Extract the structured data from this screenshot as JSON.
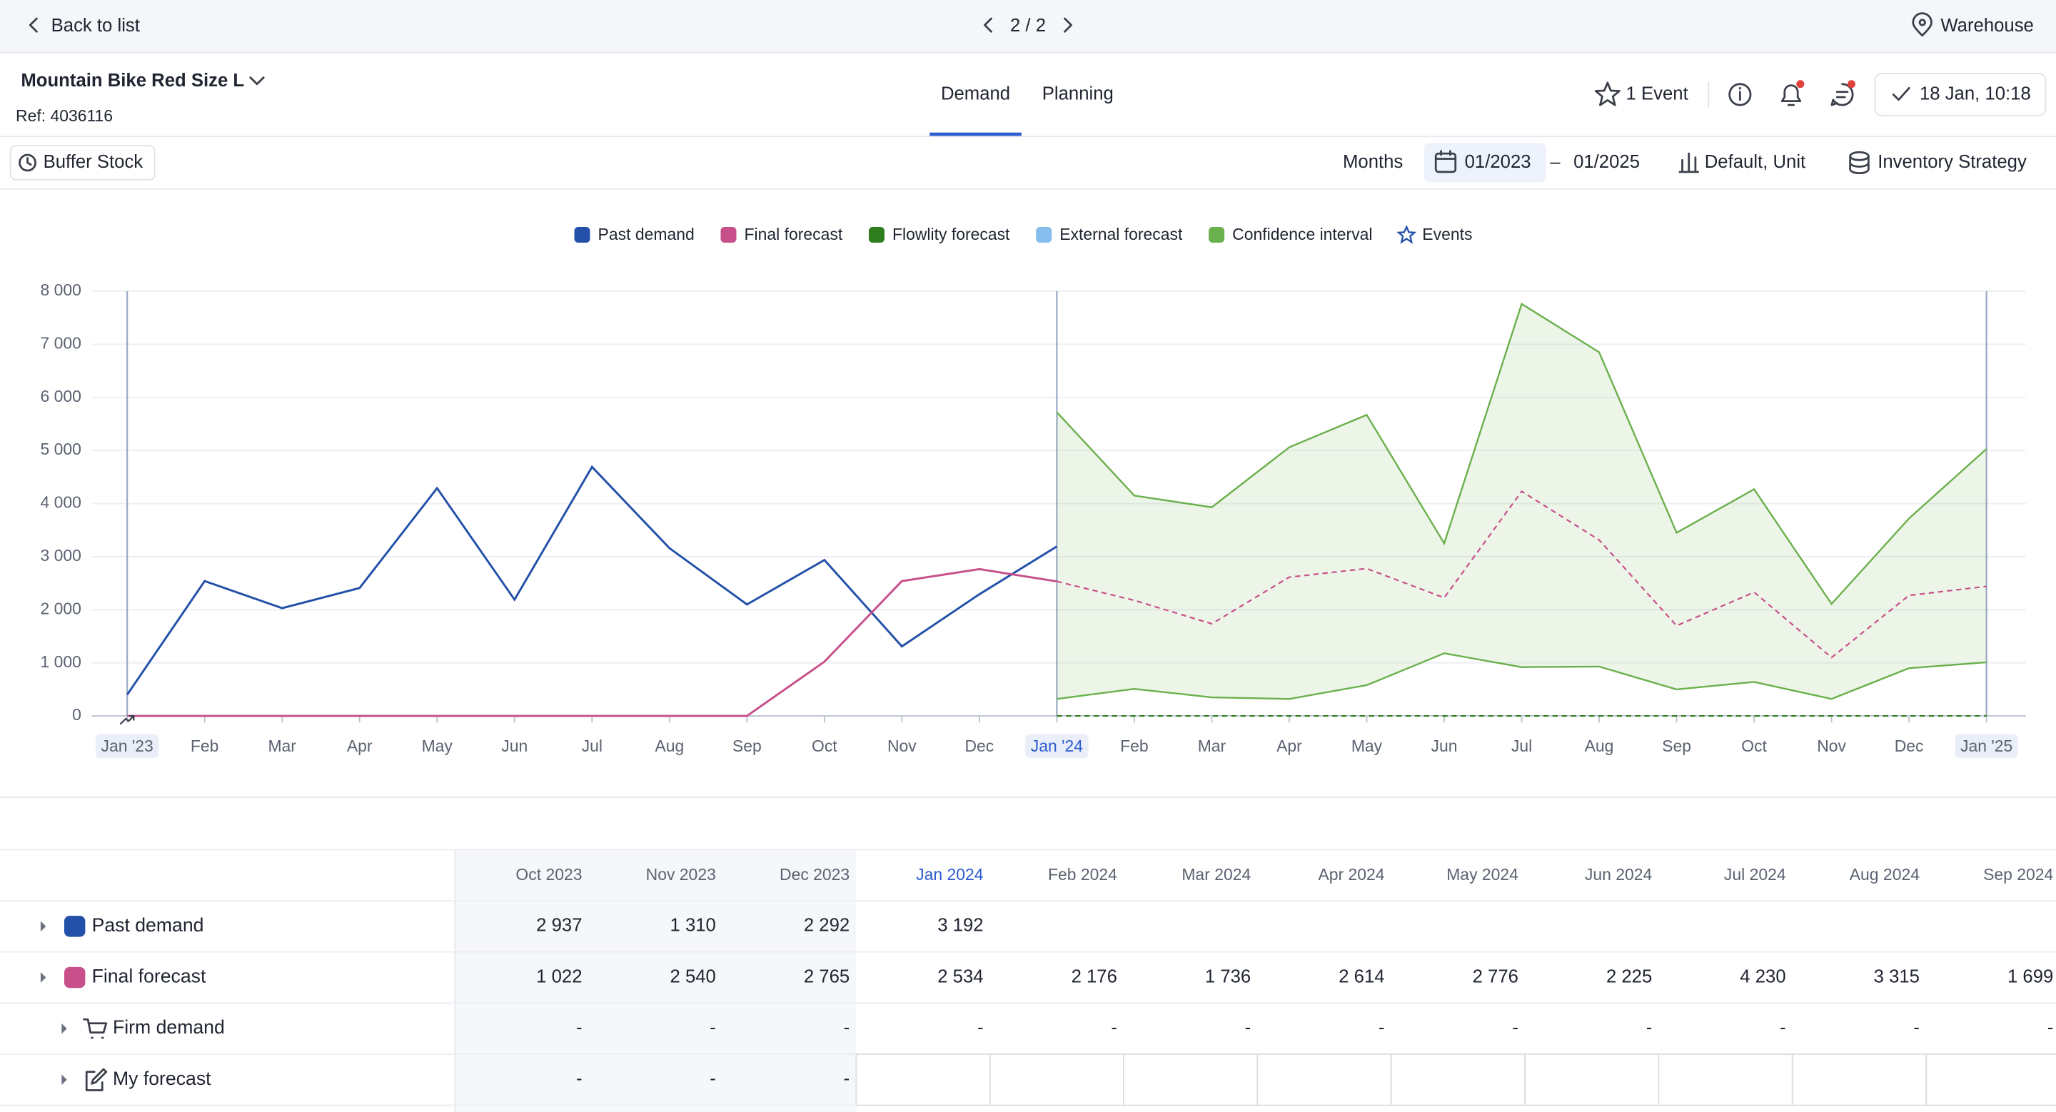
{
  "header": {
    "back": "Back to list",
    "pager": "2 / 2",
    "location": "Warehouse"
  },
  "product": {
    "title": "Mountain Bike Red Size L",
    "ref": "Ref: 4036116",
    "tabs": [
      "Demand",
      "Planning"
    ],
    "events": "1 Event",
    "status": "18 Jan, 10:18"
  },
  "toolbar": {
    "buffer": "Buffer Stock",
    "period": "Months",
    "from": "01/2023",
    "dash": "–",
    "to": "01/2025",
    "unit": "Default, Unit",
    "strategy": "Inventory Strategy"
  },
  "chart_data": {
    "type": "line",
    "categories": [
      "Jan '23",
      "Feb",
      "Mar",
      "Apr",
      "May",
      "Jun",
      "Jul",
      "Aug",
      "Sep",
      "Oct",
      "Nov",
      "Dec",
      "Jan '24",
      "Feb",
      "Mar",
      "Apr",
      "May",
      "Jun",
      "Jul",
      "Aug",
      "Sep",
      "Oct",
      "Nov",
      "Dec",
      "Jan '25"
    ],
    "series": [
      {
        "name": "Past demand",
        "color": "#2350a8",
        "values": [
          400,
          2540,
          2030,
          2410,
          4290,
          2190,
          4690,
          3160,
          2100,
          2937,
          1310,
          2292,
          3192,
          null,
          null,
          null,
          null,
          null,
          null,
          null,
          null,
          null,
          null,
          null,
          null
        ]
      },
      {
        "name": "Final forecast",
        "color": "#c8508a",
        "values": [
          0,
          0,
          0,
          0,
          0,
          0,
          0,
          0,
          0,
          1022,
          2540,
          2765,
          2534,
          2176,
          1736,
          2614,
          2776,
          2225,
          4230,
          3315,
          1699,
          2330,
          1100,
          2270,
          2440
        ]
      },
      {
        "name": "Flowlity forecast",
        "color": "#2e7d1e",
        "values": [
          null,
          null,
          null,
          null,
          null,
          null,
          null,
          null,
          null,
          null,
          null,
          null,
          0,
          0,
          0,
          0,
          0,
          0,
          0,
          0,
          0,
          0,
          0,
          0,
          0
        ]
      },
      {
        "name": "External forecast",
        "color": "#86bdec",
        "values": [
          null,
          null,
          null,
          null,
          null,
          null,
          null,
          null,
          null,
          null,
          null,
          null,
          null,
          null,
          null,
          null,
          null,
          null,
          null,
          null,
          null,
          null,
          null,
          null,
          null
        ]
      }
    ],
    "confidence_interval": {
      "name": "Confidence interval",
      "color": "#6ab04c",
      "upper": [
        null,
        null,
        null,
        null,
        null,
        null,
        null,
        null,
        null,
        null,
        null,
        null,
        5720,
        4150,
        3930,
        5060,
        5670,
        3250,
        7760,
        6850,
        3450,
        4270,
        2110,
        3720,
        5030
      ],
      "lower": [
        null,
        null,
        null,
        null,
        null,
        null,
        null,
        null,
        null,
        null,
        null,
        null,
        320,
        510,
        350,
        320,
        580,
        1180,
        920,
        930,
        500,
        640,
        320,
        900,
        1010
      ]
    },
    "events": {
      "name": "Events",
      "color": "#2350a8"
    },
    "ylim": [
      0,
      8000
    ],
    "yticks": [
      0,
      {
        "value": 1000,
        "label": "1 000"
      },
      {
        "value": 2000,
        "label": "2 000"
      },
      {
        "value": 3000,
        "label": "3 000"
      },
      {
        "value": 4000,
        "label": "4 000"
      },
      {
        "value": 5000,
        "label": "5 000"
      },
      {
        "value": 6000,
        "label": "6 000"
      },
      {
        "value": 7000,
        "label": "7 000"
      },
      {
        "value": 8000,
        "label": "8 000"
      }
    ],
    "grid": true
  },
  "table": {
    "columns": [
      "Oct 2023",
      "Nov 2023",
      "Dec 2023",
      "Jan 2024",
      "Feb 2024",
      "Mar 2024",
      "Apr 2024",
      "May 2024",
      "Jun 2024",
      "Jul 2024",
      "Aug 2024",
      "Sep 2024"
    ],
    "rows": [
      {
        "label": "Past demand",
        "color": "#2350a8",
        "cells": [
          "2 937",
          "1 310",
          "2 292",
          "3 192"
        ]
      },
      {
        "label": "Final forecast",
        "color": "#c8508a",
        "cells": [
          "1 022",
          "2 540",
          "2 765",
          "2 534",
          "2 176",
          "1 736",
          "2 614",
          "2 776",
          "2 225",
          "4 230",
          "3 315",
          "1 699"
        ]
      },
      {
        "label": "Firm demand",
        "cells": [
          "-",
          "-",
          "-",
          "-",
          "-",
          "-",
          "-",
          "-",
          "-",
          "-",
          "-",
          "-"
        ]
      },
      {
        "label": "My forecast",
        "cells": [
          "-",
          "-",
          "-"
        ]
      }
    ]
  }
}
